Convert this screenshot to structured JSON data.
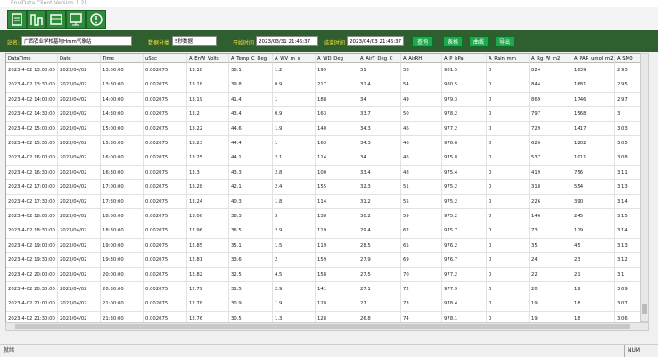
{
  "window": {
    "title": "EnviData Client(Version 1.2)"
  },
  "filters": {
    "station_label": "站名:",
    "station": "广西农业学校基地Hmm气象站",
    "category_label": "数据分类",
    "category": "5秒数据",
    "start_label": "开始时间",
    "start": "2023/03/31 21:46:37",
    "end_label": "结束时间",
    "end": "2023/04/03 21:46:37",
    "buttons": [
      "查询",
      "表格",
      "曲线",
      "导出"
    ]
  },
  "table": {
    "columns": [
      "DataTime",
      "Date",
      "Time",
      "uSec",
      "A_EnW_Volts",
      "A_Temp_C_Deg",
      "A_WV_m_s",
      "A_WD_Deg",
      "A_AirT_Deg_C",
      "A_AirRH",
      "A_P_hPa",
      "A_Rain_mm",
      "A_Rg_W_m2",
      "A_PAR_umol_m2",
      "A_SM0"
    ],
    "rows": [
      [
        "2023-4-02 13:00:00",
        "2023/04/02",
        "13:00:00",
        "0.002075",
        "13.18",
        "38.1",
        "1.2",
        "199",
        "31",
        "58",
        "981.5",
        "0",
        "824",
        "1639",
        "2.93"
      ],
      [
        "2023-4-02 13:30:00",
        "2023/04/02",
        "13:30:00",
        "0.002075",
        "13.18",
        "39.8",
        "0.9",
        "217",
        "32.4",
        "54",
        "980.5",
        "0",
        "844",
        "1681",
        "2.95"
      ],
      [
        "2023-4-02 14:00:00",
        "2023/04/02",
        "14:00:00",
        "0.002075",
        "13.19",
        "41.4",
        "1",
        "188",
        "34",
        "49",
        "979.3",
        "0",
        "869",
        "1746",
        "2.97"
      ],
      [
        "2023-4-02 14:30:00",
        "2023/04/02",
        "14:30:00",
        "0.002075",
        "13.2",
        "43.4",
        "0.9",
        "163",
        "33.7",
        "50",
        "978.2",
        "0",
        "797",
        "1568",
        "3"
      ],
      [
        "2023-4-02 15:00:00",
        "2023/04/02",
        "15:00:00",
        "0.002075",
        "13.22",
        "44.6",
        "1.9",
        "140",
        "34.3",
        "46",
        "977.2",
        "0",
        "729",
        "1417",
        "3.03"
      ],
      [
        "2023-4-02 15:30:00",
        "2023/04/02",
        "15:30:00",
        "0.002075",
        "13.23",
        "44.4",
        "1",
        "163",
        "34.3",
        "46",
        "976.6",
        "0",
        "626",
        "1202",
        "3.05"
      ],
      [
        "2023-4-02 16:00:00",
        "2023/04/02",
        "16:00:00",
        "0.002075",
        "13.25",
        "44.1",
        "2.1",
        "114",
        "34",
        "46",
        "975.8",
        "0",
        "537",
        "1011",
        "3.08"
      ],
      [
        "2023-4-02 16:30:00",
        "2023/04/02",
        "16:30:00",
        "0.002075",
        "13.3",
        "43.3",
        "2.8",
        "100",
        "33.4",
        "48",
        "975.4",
        "0",
        "419",
        "756",
        "3.11"
      ],
      [
        "2023-4-02 17:00:00",
        "2023/04/02",
        "17:00:00",
        "0.002075",
        "13.28",
        "42.1",
        "2.4",
        "155",
        "32.3",
        "51",
        "975.2",
        "0",
        "318",
        "554",
        "3.13"
      ],
      [
        "2023-4-02 17:30:00",
        "2023/04/02",
        "17:30:00",
        "0.002075",
        "13.24",
        "40.3",
        "1.8",
        "114",
        "31.2",
        "55",
        "975.2",
        "0",
        "226",
        "390",
        "3.14"
      ],
      [
        "2023-4-02 18:00:00",
        "2023/04/02",
        "18:00:00",
        "0.002075",
        "13.06",
        "38.3",
        "3",
        "138",
        "30.2",
        "59",
        "975.2",
        "0",
        "146",
        "245",
        "3.15"
      ],
      [
        "2023-4-02 18:30:00",
        "2023/04/02",
        "18:30:00",
        "0.002075",
        "12.96",
        "36.5",
        "2.9",
        "119",
        "29.4",
        "62",
        "975.7",
        "0",
        "73",
        "119",
        "3.14"
      ],
      [
        "2023-4-02 19:00:00",
        "2023/04/02",
        "19:00:00",
        "0.002075",
        "12.85",
        "35.1",
        "1.5",
        "119",
        "28.5",
        "65",
        "976.2",
        "0",
        "35",
        "45",
        "3.13"
      ],
      [
        "2023-4-02 19:30:00",
        "2023/04/02",
        "19:30:00",
        "0.002075",
        "12.81",
        "33.6",
        "2",
        "159",
        "27.9",
        "69",
        "976.7",
        "0",
        "24",
        "23",
        "3.12"
      ],
      [
        "2023-4-02 20:00:00",
        "2023/04/02",
        "20:00:00",
        "0.002075",
        "12.82",
        "32.5",
        "4.5",
        "158",
        "27.5",
        "70",
        "977.2",
        "0",
        "22",
        "21",
        "3.1"
      ],
      [
        "2023-4-02 20:30:00",
        "2023/04/02",
        "20:30:00",
        "0.002075",
        "12.79",
        "31.5",
        "2.9",
        "141",
        "27.1",
        "72",
        "977.9",
        "0",
        "20",
        "19",
        "3.09"
      ],
      [
        "2023-4-02 21:00:00",
        "2023/04/02",
        "21:00:00",
        "0.002075",
        "12.78",
        "30.9",
        "1.9",
        "128",
        "27",
        "73",
        "978.4",
        "0",
        "19",
        "18",
        "3.07"
      ],
      [
        "2023-4-02 21:30:00",
        "2023/04/02",
        "21:30:00",
        "0.002075",
        "12.76",
        "30.5",
        "1.3",
        "128",
        "26.8",
        "74",
        "978.1",
        "0",
        "19",
        "18",
        "3.06"
      ]
    ]
  },
  "status": {
    "left": "就绪",
    "right": "NUM"
  }
}
